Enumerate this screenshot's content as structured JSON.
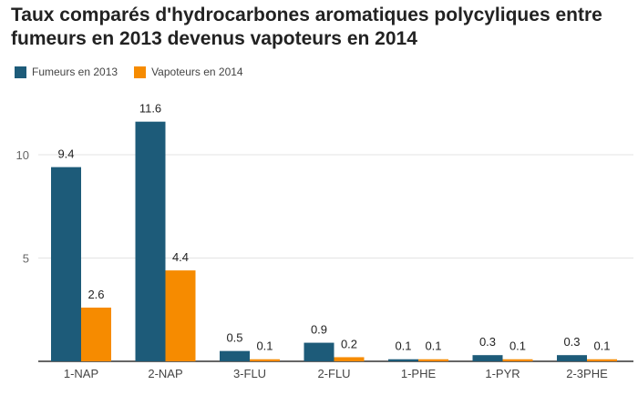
{
  "chart_data": {
    "type": "bar",
    "title": "Taux comparés d'hydrocarbones aromatiques polycyliques entre fumeurs en 2013 devenus vapoteurs en 2014",
    "categories": [
      "1-NAP",
      "2-NAP",
      "3-FLU",
      "2-FLU",
      "1-PHE",
      "1-PYR",
      "2-3PHE"
    ],
    "series": [
      {
        "name": "Fumeurs en 2013",
        "color": "#1d5b79",
        "values": [
          9.4,
          11.6,
          0.5,
          0.9,
          0.1,
          0.3,
          0.3
        ],
        "labels": [
          "9.4",
          "11.6",
          "0.5",
          "0.9",
          "0.1",
          "0.3",
          "0.3"
        ]
      },
      {
        "name": "Vapoteurs en 2014",
        "color": "#f68b00",
        "values": [
          2.6,
          4.4,
          0.1,
          0.2,
          0.1,
          0.1,
          0.1
        ],
        "labels": [
          "2.6",
          "4.4",
          "0.1",
          "0.2",
          "0.1",
          "0.1",
          "0.1"
        ]
      }
    ],
    "yticks": [
      5,
      10
    ],
    "ylim": [
      0,
      13
    ],
    "grid": true,
    "legend_position": "top-left"
  }
}
